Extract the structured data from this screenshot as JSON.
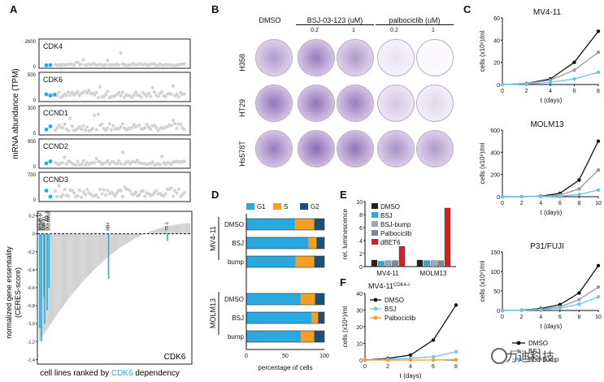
{
  "panels": {
    "A": "A",
    "B": "B",
    "C": "C",
    "D": "D",
    "E": "E",
    "F": "F"
  },
  "panelA": {
    "ylabel": "mRNA abundance (TPM)",
    "rows": [
      {
        "name": "CDK4",
        "ymax": "2600",
        "ymin": "0"
      },
      {
        "name": "CDK6",
        "ymax": "500",
        "ymin": "0"
      },
      {
        "name": "CCND1",
        "ymax": "300",
        "ymin": "0"
      },
      {
        "name": "CCND2",
        "ymax": "900",
        "ymin": "0"
      },
      {
        "name": "CCND3",
        "ymax": "700",
        "ymin": "0"
      }
    ],
    "ess_ylabel": "normalized gene essentiality\n(CERES-score)",
    "ess_ticks": [
      "0,2",
      "0",
      "-0,2",
      "-0,4",
      "-0,6",
      "-0,8",
      "-1,0",
      "-1,2",
      "-1,4"
    ],
    "cell_lines": [
      "MOLM-13",
      "MONO-1",
      "THP-1",
      "MV4-11",
      "OCI-AML3",
      "OCI-AML2",
      "NB4",
      "TF-1"
    ],
    "gene": "CDK6",
    "xlabel_pre": "cell lines ranked by ",
    "xlabel_gene": "CDK6",
    "xlabel_post": " dependency"
  },
  "panelB": {
    "columns": [
      "DMSO",
      "BSJ-03-123 (uM)",
      "palbociclib (uM)"
    ],
    "doses": [
      "0.2",
      "1",
      "0.2",
      "1"
    ],
    "rows": [
      "H358",
      "HT29",
      "Hs578T"
    ]
  },
  "panelC": {
    "ylabel": "cells (x10⁶)/ml",
    "xlabel": "t (days)",
    "legend": [
      "DMSO",
      "BSJ",
      "BSJ-bump"
    ],
    "plots": [
      {
        "title": "MV4-11",
        "yticks": [
          "0",
          "20",
          "40",
          "60"
        ],
        "xticks": [
          "0",
          "2",
          "4",
          "6",
          "8"
        ]
      },
      {
        "title": "MOLM13",
        "yticks": [
          "0",
          "200",
          "400",
          "600"
        ],
        "xticks": [
          "0",
          "2",
          "4",
          "6",
          "8",
          "10"
        ]
      },
      {
        "title": "P31/FUJI",
        "yticks": [
          "0",
          "50",
          "100",
          "150"
        ],
        "xticks": [
          "0",
          "2",
          "4",
          "6",
          "8",
          "10"
        ]
      }
    ]
  },
  "panelD": {
    "legend": [
      "G1",
      "S",
      "G2"
    ],
    "groups": [
      "MV4-11",
      "MOLM13"
    ],
    "conditions": [
      "DMSO",
      "BSJ",
      "bump"
    ],
    "xticks": [
      "0",
      "50",
      "100"
    ],
    "xlabel": "percentage of cells"
  },
  "panelE": {
    "ylabel": "rel. luminescence",
    "yticks": [
      "0",
      "2",
      "4",
      "6",
      "8",
      "10"
    ],
    "legend": [
      "DMSO",
      "BSJ",
      "BSJ-bump",
      "Palbociclib",
      "dBET6"
    ],
    "groups": [
      "MV4-11",
      "MOLM13"
    ]
  },
  "panelF": {
    "title": "MV4-11",
    "title_sup": "CDK4-/-",
    "ylabel": "cells (x10⁶)/ml",
    "xlabel": "t (days)",
    "yticks": [
      "0",
      "10",
      "20",
      "30",
      "40"
    ],
    "xticks": [
      "0",
      "2",
      "4",
      "6",
      "8"
    ],
    "legend": [
      "DMSO",
      "BSJ",
      "Palbociclib"
    ]
  },
  "watermark": "力迪科技",
  "colors": {
    "blue": "#29a9e0",
    "gray": "#999999",
    "black": "#111111",
    "orange": "#f2a024",
    "navy": "#1f4e79",
    "red": "#d42020",
    "lightblue": "#6cc5ec"
  },
  "chart_data": [
    {
      "type": "scatter",
      "title": "CDK4",
      "ylim": [
        0,
        2600
      ]
    },
    {
      "type": "scatter",
      "title": "CDK6",
      "ylim": [
        0,
        500
      ]
    },
    {
      "type": "scatter",
      "title": "CCND1",
      "ylim": [
        0,
        300
      ]
    },
    {
      "type": "scatter",
      "title": "CCND2",
      "ylim": [
        0,
        900
      ]
    },
    {
      "type": "scatter",
      "title": "CCND3",
      "ylim": [
        0,
        700
      ]
    },
    {
      "type": "bar",
      "title": "CDK6",
      "ylabel": "normalized gene essentiality (CERES-score)",
      "ylim": [
        -1.45,
        0.25
      ]
    },
    {
      "type": "line",
      "title": "MV4-11",
      "xlabel": "t (days)",
      "ylabel": "cells (x10⁶)/ml",
      "xlim": [
        0,
        8
      ],
      "ylim": [
        0,
        60
      ],
      "x": [
        0,
        2,
        4,
        6,
        8
      ],
      "series": [
        {
          "name": "DMSO",
          "values": [
            0,
            1,
            5,
            20,
            48
          ]
        },
        {
          "name": "BSJ",
          "values": [
            0,
            1,
            4,
            13,
            29
          ]
        },
        {
          "name": "BSJ-bump",
          "values": [
            0,
            0.5,
            2,
            5,
            11
          ]
        }
      ]
    },
    {
      "type": "line",
      "title": "MOLM13",
      "xlabel": "t (days)",
      "ylabel": "cells (x10⁶)/ml",
      "xlim": [
        0,
        10
      ],
      "ylim": [
        0,
        600
      ],
      "x": [
        0,
        2,
        4,
        6,
        8,
        10
      ],
      "series": [
        {
          "name": "DMSO",
          "values": [
            0,
            0,
            5,
            30,
            150,
            500
          ]
        },
        {
          "name": "BSJ",
          "values": [
            0,
            0,
            3,
            15,
            70,
            240
          ]
        },
        {
          "name": "BSJ-bump",
          "values": [
            0,
            0,
            1,
            5,
            20,
            60
          ]
        }
      ]
    },
    {
      "type": "line",
      "title": "P31/FUJI",
      "xlabel": "t (days)",
      "ylabel": "cells (x10⁶)/ml",
      "xlim": [
        0,
        10
      ],
      "ylim": [
        0,
        150
      ],
      "x": [
        0,
        2,
        4,
        6,
        8,
        10
      ],
      "series": [
        {
          "name": "DMSO",
          "values": [
            0,
            1,
            5,
            15,
            45,
            115
          ]
        },
        {
          "name": "BSJ",
          "values": [
            0,
            1,
            3,
            9,
            28,
            60
          ]
        },
        {
          "name": "BSJ-bump",
          "values": [
            0,
            0.5,
            2,
            6,
            16,
            35
          ]
        }
      ]
    },
    {
      "type": "bar",
      "title": "D",
      "xlabel": "percentage of cells",
      "xlim": [
        0,
        100
      ],
      "categories": [
        "MV4-11 DMSO",
        "MV4-11 BSJ",
        "MV4-11 bump",
        "MOLM13 DMSO",
        "MOLM13 BSJ",
        "MOLM13 bump"
      ],
      "series": [
        {
          "name": "G1",
          "values": [
            62,
            80,
            63,
            70,
            84,
            70
          ]
        },
        {
          "name": "S",
          "values": [
            25,
            10,
            24,
            18,
            8,
            17
          ]
        },
        {
          "name": "G2",
          "values": [
            13,
            10,
            13,
            12,
            8,
            13
          ]
        }
      ]
    },
    {
      "type": "bar",
      "title": "E",
      "ylabel": "rel. luminescence",
      "ylim": [
        0,
        10
      ],
      "categories": [
        "MV4-11",
        "MOLM13"
      ],
      "series": [
        {
          "name": "DMSO",
          "values": [
            1,
            1
          ]
        },
        {
          "name": "BSJ",
          "values": [
            0.8,
            0.9
          ]
        },
        {
          "name": "BSJ-bump",
          "values": [
            0.9,
            0.9
          ]
        },
        {
          "name": "Palbociclib",
          "values": [
            0.9,
            0.9
          ]
        },
        {
          "name": "dBET6",
          "values": [
            3.1,
            9.0
          ]
        }
      ]
    },
    {
      "type": "line",
      "title": "MV4-11 CDK4-/-",
      "xlabel": "t (days)",
      "ylabel": "cells (x10⁶)/ml",
      "xlim": [
        0,
        8
      ],
      "ylim": [
        0,
        40
      ],
      "x": [
        0,
        2,
        4,
        6,
        8
      ],
      "series": [
        {
          "name": "DMSO",
          "values": [
            0,
            1,
            3,
            12,
            33
          ]
        },
        {
          "name": "BSJ",
          "values": [
            0,
            0.5,
            1,
            2,
            5
          ]
        },
        {
          "name": "Palbociclib",
          "values": [
            0,
            0,
            0,
            0,
            0.3
          ]
        }
      ]
    }
  ]
}
